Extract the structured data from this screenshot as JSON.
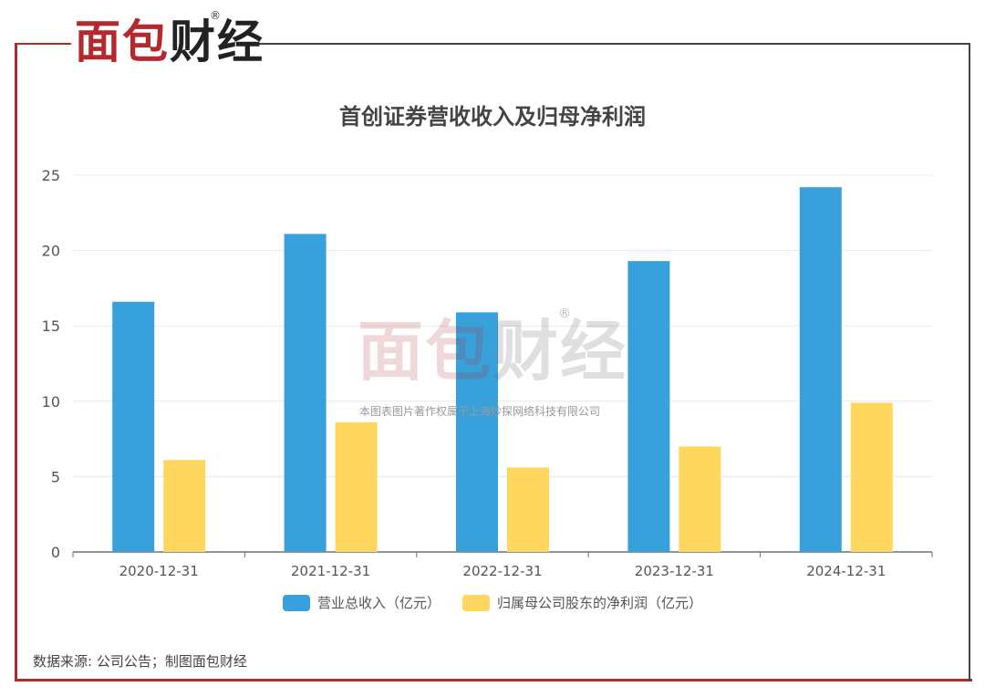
{
  "brand": {
    "logo_red": "面包",
    "logo_dark": "财经",
    "registered": "®"
  },
  "watermark": {
    "text": "本图表图片著作权属于上海妙探网络科技有限公司"
  },
  "source": "数据来源: 公司公告；制图面包财经",
  "colors": {
    "brand_red": "#b22a2e",
    "series_1": "#38a1db",
    "series_2": "#ffd75e"
  },
  "chart_data": {
    "type": "bar",
    "title": "首创证券营收收入及归母净利润",
    "categories": [
      "2020-12-31",
      "2021-12-31",
      "2022-12-31",
      "2023-12-31",
      "2024-12-31"
    ],
    "series": [
      {
        "name": "营业总收入（亿元）",
        "values": [
          16.6,
          21.1,
          15.9,
          19.3,
          24.2
        ]
      },
      {
        "name": "归属母公司股东的净利润（亿元）",
        "values": [
          6.1,
          8.6,
          5.6,
          7.0,
          9.9
        ]
      }
    ],
    "ylim": [
      0,
      25
    ],
    "yticks": [
      0,
      5,
      10,
      15,
      20,
      25
    ],
    "grid": true,
    "legend": "bottom-center"
  }
}
